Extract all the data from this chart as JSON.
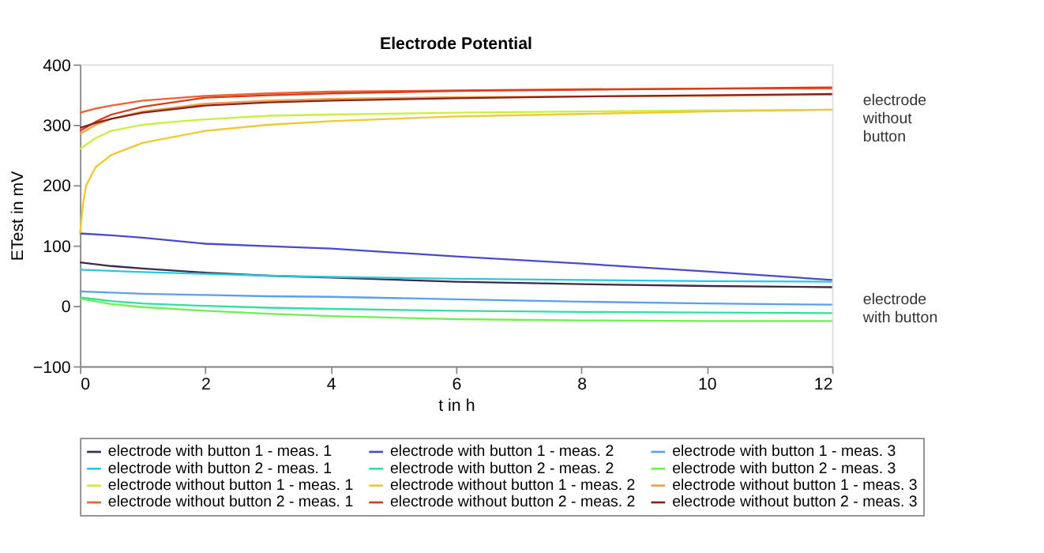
{
  "chart_data": {
    "type": "line",
    "title": "Electrode Potential",
    "xlabel": "t in h",
    "ylabel": "ETest in mV",
    "xlim": [
      0,
      12
    ],
    "xticks": [
      0,
      2,
      4,
      6,
      8,
      10,
      12
    ],
    "ylim": [
      -100,
      400
    ],
    "yticks": [
      -100,
      0,
      100,
      200,
      300,
      400
    ],
    "grid": false,
    "legend": "bottom",
    "marker": "none",
    "line_style": "solid",
    "annotations": [
      {
        "text": "electrode\nwithout\nbutton",
        "x": 12,
        "y": 340
      },
      {
        "text": "electrode\nwith button",
        "x": 12,
        "y": 10
      }
    ],
    "series": [
      {
        "name": "electrode with button 1 - meas. 1",
        "color": "#3d2a4a",
        "x": [
          0,
          0.5,
          1,
          2,
          3,
          4,
          6,
          8,
          10,
          12
        ],
        "values": [
          72,
          66,
          62,
          55,
          50,
          47,
          40,
          36,
          33,
          31
        ]
      },
      {
        "name": "electrode with button 1 - meas. 2",
        "color": "#4a4acf",
        "x": [
          0,
          0.5,
          1,
          2,
          3,
          4,
          6,
          8,
          10,
          12
        ],
        "values": [
          120,
          117,
          113,
          103,
          99,
          95,
          82,
          70,
          57,
          43
        ]
      },
      {
        "name": "electrode with button 1 - meas. 3",
        "color": "#5aa0f0",
        "x": [
          0,
          0.5,
          1,
          2,
          3,
          4,
          6,
          8,
          10,
          12
        ],
        "values": [
          24,
          22,
          20,
          18,
          16,
          15,
          11,
          7,
          4,
          2
        ]
      },
      {
        "name": "electrode with button 2 - meas. 1",
        "color": "#2ac8e0",
        "x": [
          0,
          0.5,
          1,
          2,
          3,
          4,
          6,
          8,
          10,
          12
        ],
        "values": [
          60,
          58,
          56,
          53,
          50,
          48,
          45,
          43,
          41,
          40
        ]
      },
      {
        "name": "electrode with button 2 - meas. 2",
        "color": "#30e0a0",
        "x": [
          0,
          0.5,
          1,
          2,
          3,
          4,
          6,
          8,
          10,
          12
        ],
        "values": [
          14,
          8,
          4,
          0,
          -3,
          -5,
          -8,
          -10,
          -11,
          -12
        ]
      },
      {
        "name": "electrode with button 2 - meas. 3",
        "color": "#6ef050",
        "x": [
          0,
          0.5,
          1,
          2,
          3,
          4,
          6,
          8,
          10,
          12
        ],
        "values": [
          12,
          3,
          -2,
          -8,
          -13,
          -17,
          -22,
          -24,
          -25,
          -25
        ]
      },
      {
        "name": "electrode without button 1 - meas. 1",
        "color": "#c8f040",
        "x": [
          0,
          0.25,
          0.5,
          1,
          1.5,
          2,
          3,
          4,
          6,
          8,
          10,
          12
        ],
        "values": [
          260,
          278,
          290,
          300,
          305,
          309,
          315,
          317,
          320,
          322,
          324,
          325
        ]
      },
      {
        "name": "electrode without button 1 - meas. 2",
        "color": "#f0c830",
        "x": [
          0,
          0.05,
          0.1,
          0.25,
          0.5,
          1,
          2,
          3,
          4,
          5,
          6,
          8,
          10,
          12
        ],
        "values": [
          120,
          170,
          200,
          230,
          250,
          270,
          290,
          300,
          306,
          310,
          314,
          318,
          322,
          325
        ]
      },
      {
        "name": "electrode without button 1 - meas. 3",
        "color": "#f0a040",
        "x": [
          0,
          0.25,
          0.5,
          1,
          2,
          3,
          4,
          6,
          8,
          10,
          12
        ],
        "values": [
          285,
          300,
          310,
          322,
          335,
          340,
          343,
          346,
          347,
          348,
          350
        ]
      },
      {
        "name": "electrode without button 2 - meas. 1",
        "color": "#f06030",
        "x": [
          0,
          0.25,
          0.5,
          1,
          2,
          3,
          4,
          6,
          8,
          10,
          12
        ],
        "values": [
          320,
          327,
          332,
          340,
          348,
          352,
          355,
          357,
          359,
          360,
          360
        ]
      },
      {
        "name": "electrode without button 2 - meas. 2",
        "color": "#d83a1e",
        "x": [
          0,
          0.25,
          0.5,
          1,
          2,
          3,
          4,
          6,
          8,
          10,
          12
        ],
        "values": [
          290,
          305,
          317,
          330,
          345,
          349,
          352,
          356,
          358,
          360,
          362
        ]
      },
      {
        "name": "electrode without button 2 - meas. 3",
        "color": "#8b2020",
        "x": [
          0,
          0.25,
          0.5,
          1,
          2,
          3,
          4,
          6,
          8,
          10,
          12
        ],
        "values": [
          295,
          303,
          310,
          320,
          332,
          337,
          340,
          344,
          347,
          349,
          351
        ]
      }
    ]
  }
}
